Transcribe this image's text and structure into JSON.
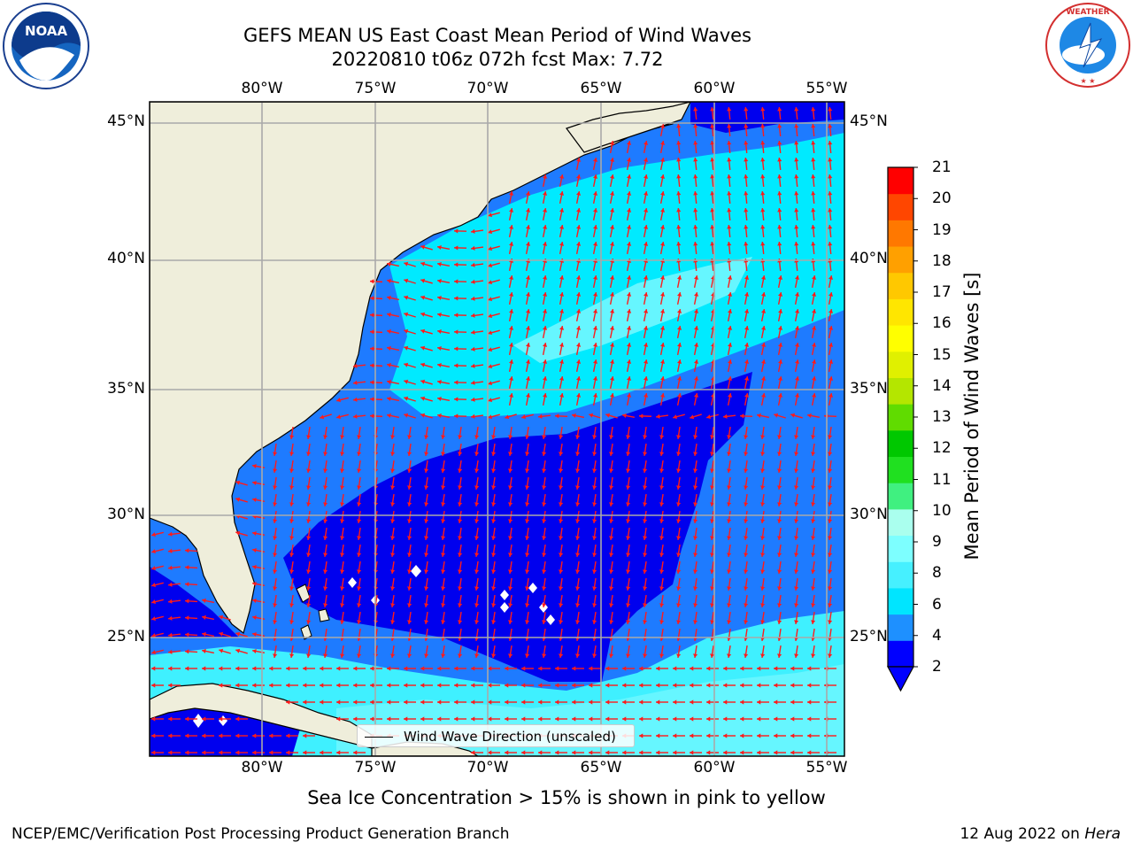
{
  "title": {
    "line1": "GEFS MEAN US East Coast Mean Period of Wind Waves",
    "line2": "20220810 t06z 072h fcst   Max: 7.72"
  },
  "logos": {
    "left": "NOAA",
    "right": "NATIONAL WEATHER SERVICE"
  },
  "axes": {
    "lon_ticks": [
      "80°W",
      "75°W",
      "70°W",
      "65°W",
      "60°W",
      "55°W"
    ],
    "lat_ticks": [
      "45°N",
      "40°N",
      "35°N",
      "30°N",
      "25°N"
    ]
  },
  "colorbar": {
    "label": "Mean Period of Wind Waves [s]",
    "ticks": [
      "2",
      "4",
      "6",
      "8",
      "9",
      "10",
      "11",
      "12",
      "13",
      "14",
      "15",
      "16",
      "17",
      "18",
      "19",
      "20",
      "21"
    ],
    "colors": [
      "#0000ff",
      "#1e90ff",
      "#00e5ff",
      "#46f0ff",
      "#7dffff",
      "#aaffee",
      "#40f080",
      "#20e020",
      "#00c800",
      "#60dc00",
      "#b4e600",
      "#e0f000",
      "#ffff00",
      "#ffe600",
      "#ffc800",
      "#ffa000",
      "#ff7800",
      "#ff4600",
      "#ff0000"
    ]
  },
  "legend": {
    "label": "Wind Wave Direction (unscaled)"
  },
  "sea_ice_note": "Sea Ice Concentration > 15% is shown in pink to yellow",
  "footer": {
    "left": "NCEP/EMC/Verification Post Processing Product Generation Branch",
    "date": "12 Aug 2022 on ",
    "machine": "Hera"
  }
}
